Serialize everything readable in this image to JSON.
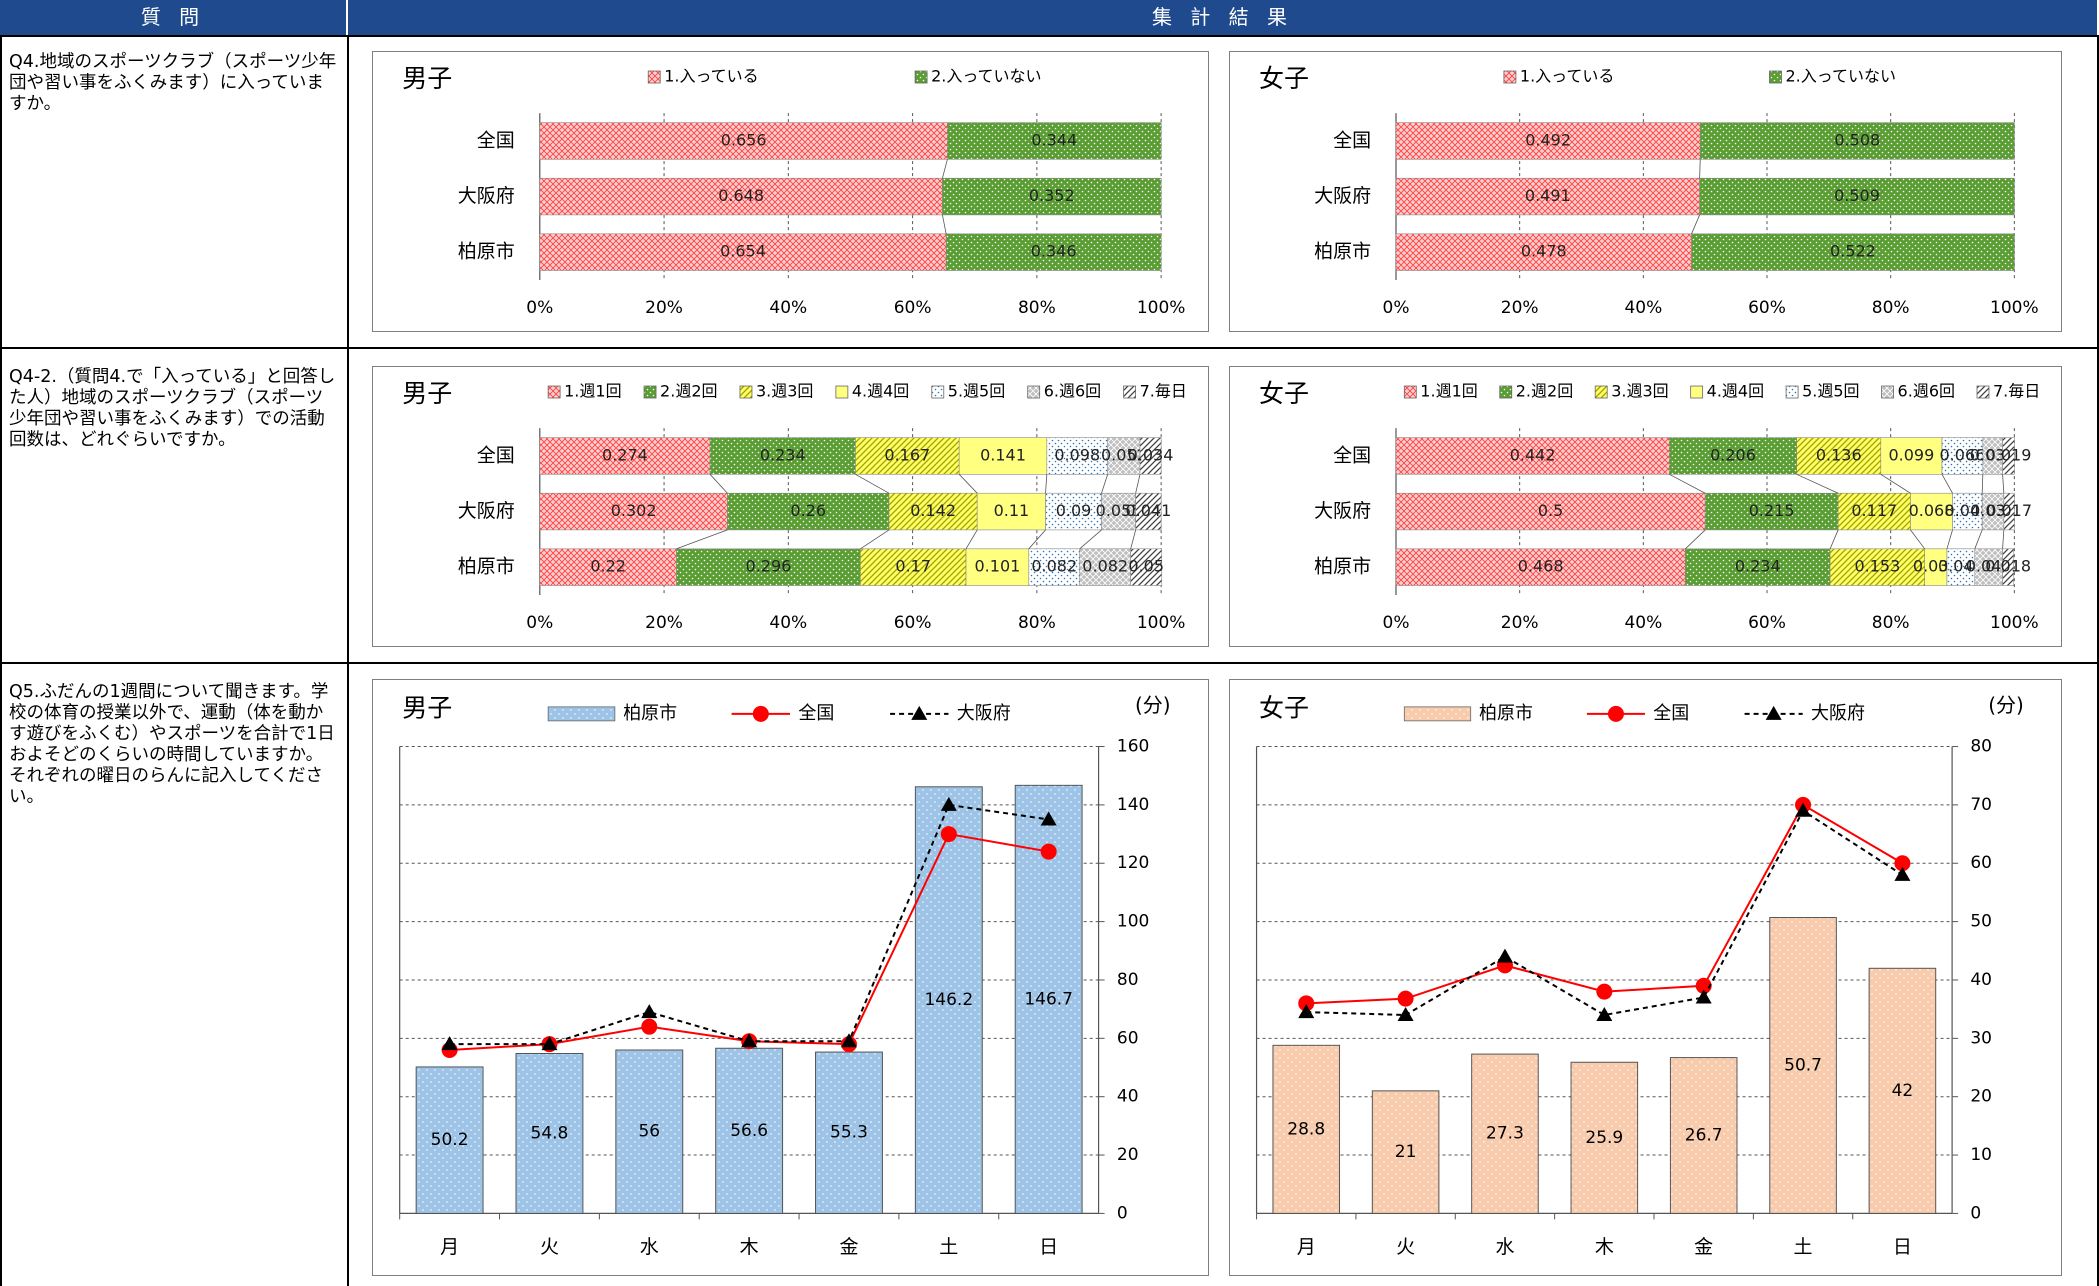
{
  "header": [
    "質 問",
    "集 計 結 果"
  ],
  "questions": [
    "Q4.地域のスポーツクラブ（スポーツ少年団や習い事をふくみます）に入っていますか。",
    "Q4-2.（質問4.で「入っている」と回答した人）地域のスポーツクラブ（スポーツ少年団や習い事をふくみます）での活動回数は、どれぐらいですか。",
    "Q5.ふだんの1週間について聞きます。学校の体育の授業以外で、運動（体を動かす遊びをふくむ）やスポーツを合計で1日およそどのくらいの時間していますか。それぞれの曜日のらんに記入してください。"
  ],
  "chart_data": [
    {
      "type": "bar",
      "horizontal": true,
      "stacked": true,
      "title": "男子",
      "categories": [
        "全国",
        "大阪府",
        "柏原市"
      ],
      "series": [
        {
          "name": "1.入っている",
          "color": "#ff3b3b",
          "values": [
            0.656,
            0.648,
            0.654
          ]
        },
        {
          "name": "2.入っていない",
          "color": "#5a9e33",
          "values": [
            0.344,
            0.352,
            0.346
          ]
        }
      ],
      "xlim": [
        0,
        1
      ],
      "xticks": [
        {
          "value": 0,
          "label": "0%"
        },
        {
          "value": 0.2,
          "label": "20%"
        },
        {
          "value": 0.4,
          "label": "40%"
        },
        {
          "value": 0.6,
          "label": "60%"
        },
        {
          "value": 0.8,
          "label": "80%"
        },
        {
          "value": 1,
          "label": "100%"
        }
      ],
      "grid": true
    },
    {
      "type": "bar",
      "horizontal": true,
      "stacked": true,
      "title": "女子",
      "categories": [
        "全国",
        "大阪府",
        "柏原市"
      ],
      "series": [
        {
          "name": "1.入っている",
          "color": "#ff3b3b",
          "values": [
            0.492,
            0.491,
            0.478
          ]
        },
        {
          "name": "2.入っていない",
          "color": "#5a9e33",
          "values": [
            0.508,
            0.509,
            0.522
          ]
        }
      ],
      "xlim": [
        0,
        1
      ],
      "xticks": [
        {
          "value": 0,
          "label": "0%"
        },
        {
          "value": 0.2,
          "label": "20%"
        },
        {
          "value": 0.4,
          "label": "40%"
        },
        {
          "value": 0.6,
          "label": "60%"
        },
        {
          "value": 0.8,
          "label": "80%"
        },
        {
          "value": 1,
          "label": "100%"
        }
      ],
      "grid": true
    },
    {
      "type": "bar",
      "horizontal": true,
      "stacked": true,
      "title": "男子",
      "categories": [
        "全国",
        "大阪府",
        "柏原市"
      ],
      "series": [
        {
          "name": "1.週1回",
          "color": "#ff3b3b",
          "values": [
            0.274,
            0.302,
            0.22
          ]
        },
        {
          "name": "2.週2回",
          "color": "#5a9e33",
          "values": [
            0.234,
            0.26,
            0.296
          ]
        },
        {
          "name": "3.週3回",
          "color": "#ffff66",
          "values": [
            0.167,
            0.142,
            0.17
          ]
        },
        {
          "name": "4.週4回",
          "color": "#ffff80",
          "values": [
            0.141,
            0.11,
            0.101
          ]
        },
        {
          "name": "5.週5回",
          "color": "#2e75b6",
          "values": [
            0.098,
            0.09,
            0.082
          ]
        },
        {
          "name": "6.週6回",
          "color": "#bfbfbf",
          "values": [
            0.052,
            0.055,
            0.082
          ]
        },
        {
          "name": "7.毎日",
          "color": "#404040",
          "values": [
            0.034,
            0.041,
            0.05
          ]
        }
      ],
      "xlim": [
        0,
        1
      ],
      "xticks": [
        {
          "value": 0,
          "label": "0%"
        },
        {
          "value": 0.2,
          "label": "20%"
        },
        {
          "value": 0.4,
          "label": "40%"
        },
        {
          "value": 0.6,
          "label": "60%"
        },
        {
          "value": 0.8,
          "label": "80%"
        },
        {
          "value": 1,
          "label": "100%"
        }
      ],
      "grid": true
    },
    {
      "type": "bar",
      "horizontal": true,
      "stacked": true,
      "title": "女子",
      "categories": [
        "全国",
        "大阪府",
        "柏原市"
      ],
      "series": [
        {
          "name": "1.週1回",
          "color": "#ff3b3b",
          "values": [
            0.442,
            0.5,
            0.468
          ]
        },
        {
          "name": "2.週2回",
          "color": "#5a9e33",
          "values": [
            0.206,
            0.215,
            0.234
          ]
        },
        {
          "name": "3.週3回",
          "color": "#ffff66",
          "values": [
            0.136,
            0.117,
            0.153
          ]
        },
        {
          "name": "4.週4回",
          "color": "#ffff80",
          "values": [
            0.099,
            0.068,
            0.036
          ]
        },
        {
          "name": "5.週5回",
          "color": "#2e75b6",
          "values": [
            0.066,
            0.048,
            0.045
          ]
        },
        {
          "name": "6.週6回",
          "color": "#bfbfbf",
          "values": [
            0.032,
            0.035,
            0.045
          ]
        },
        {
          "name": "7.毎日",
          "color": "#404040",
          "values": [
            0.019,
            0.017,
            0.018
          ]
        }
      ],
      "xlim": [
        0,
        1
      ],
      "xticks": [
        {
          "value": 0,
          "label": "0%"
        },
        {
          "value": 0.2,
          "label": "20%"
        },
        {
          "value": 0.4,
          "label": "40%"
        },
        {
          "value": 0.6,
          "label": "60%"
        },
        {
          "value": 0.8,
          "label": "80%"
        },
        {
          "value": 1,
          "label": "100%"
        }
      ],
      "grid": true
    },
    {
      "type": "combo",
      "title": "男子",
      "ylabel": "(分)",
      "categories": [
        "月",
        "火",
        "水",
        "木",
        "金",
        "土",
        "日"
      ],
      "series": [
        {
          "name": "柏原市",
          "kind": "bar",
          "color": "#9dc3e6",
          "values": [
            50.2,
            54.8,
            56,
            56.6,
            55.3,
            146.2,
            146.7
          ]
        },
        {
          "name": "全国",
          "kind": "line",
          "color": "#ff0000",
          "marker": "circle",
          "values": [
            56,
            58,
            64,
            59,
            58,
            130,
            124
          ]
        },
        {
          "name": "大阪府",
          "kind": "line",
          "color": "#000000",
          "marker": "triangle",
          "dashed": true,
          "values": [
            58,
            58,
            69,
            59,
            59,
            140,
            135
          ]
        }
      ],
      "ylim": [
        0,
        160
      ],
      "yticks": [
        0,
        20,
        40,
        60,
        80,
        100,
        120,
        140,
        160
      ],
      "grid": true
    },
    {
      "type": "combo",
      "title": "女子",
      "ylabel": "(分)",
      "categories": [
        "月",
        "火",
        "水",
        "木",
        "金",
        "土",
        "日"
      ],
      "series": [
        {
          "name": "柏原市",
          "kind": "bar",
          "color": "#f8cbad",
          "values": [
            28.8,
            21,
            27.3,
            25.9,
            26.7,
            50.7,
            42
          ]
        },
        {
          "name": "全国",
          "kind": "line",
          "color": "#ff0000",
          "marker": "circle",
          "values": [
            36,
            36.8,
            42.5,
            38,
            39,
            70,
            60
          ]
        },
        {
          "name": "大阪府",
          "kind": "line",
          "color": "#000000",
          "marker": "triangle",
          "dashed": true,
          "values": [
            34.5,
            34,
            44,
            34,
            37,
            69,
            58
          ]
        }
      ],
      "ylim": [
        0,
        80
      ],
      "yticks": [
        0,
        10,
        20,
        30,
        40,
        50,
        60,
        70,
        80
      ],
      "grid": true
    }
  ]
}
